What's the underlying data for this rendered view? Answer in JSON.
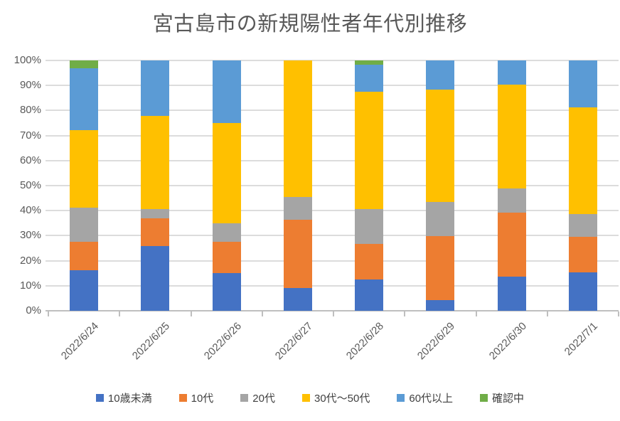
{
  "chart_data": {
    "type": "bar",
    "stacked": true,
    "percent": true,
    "title": "宮古島市の新規陽性者年代別推移",
    "categories": [
      "2022/6/24",
      "2022/6/25",
      "2022/6/26",
      "2022/6/27",
      "2022/6/28",
      "2022/6/29",
      "2022/6/30",
      "2022/7/1"
    ],
    "series": [
      {
        "name": "10歳未満",
        "color": "#4472C4",
        "values": [
          16.3,
          25.9,
          15.0,
          9.1,
          12.4,
          4.4,
          13.7,
          15.2
        ]
      },
      {
        "name": "10代",
        "color": "#ED7D31",
        "values": [
          11.3,
          11.1,
          12.5,
          27.3,
          14.2,
          25.4,
          25.5,
          14.3
        ]
      },
      {
        "name": "20代",
        "color": "#A5A5A5",
        "values": [
          13.5,
          3.7,
          7.5,
          9.1,
          13.9,
          13.8,
          9.8,
          9.0
        ]
      },
      {
        "name": "30代〜50代",
        "color": "#FFC000",
        "values": [
          31.0,
          37.0,
          40.0,
          54.5,
          47.0,
          44.8,
          41.2,
          42.7
        ]
      },
      {
        "name": "60代以上",
        "color": "#5B9BD5",
        "values": [
          24.7,
          22.3,
          25.0,
          0.0,
          10.8,
          11.6,
          9.8,
          18.8
        ]
      },
      {
        "name": "確認中",
        "color": "#70AD47",
        "values": [
          3.2,
          0.0,
          0.0,
          0.0,
          1.7,
          0.0,
          0.0,
          0.0
        ]
      }
    ],
    "y_axis": {
      "min": 0,
      "max": 100,
      "step": 10,
      "tick_labels": [
        "0%",
        "10%",
        "20%",
        "30%",
        "40%",
        "50%",
        "60%",
        "70%",
        "80%",
        "90%",
        "100%"
      ]
    },
    "grid": true,
    "legend_position": "bottom",
    "axis_color": "#bfbfbf",
    "grid_color": "#dcdcdc",
    "text_color": "#595959"
  }
}
